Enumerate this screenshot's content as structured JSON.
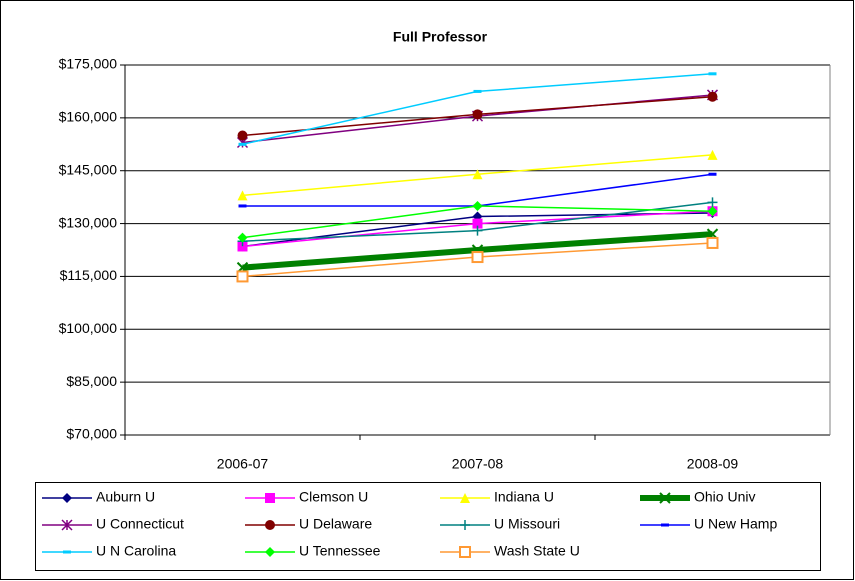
{
  "chart_data": {
    "type": "line",
    "title": "Full Professor",
    "categories": [
      "2006-07",
      "2007-08",
      "2008-09"
    ],
    "ylim": [
      70000,
      175000
    ],
    "yticks": [
      {
        "value": 70000,
        "label": "$70,000"
      },
      {
        "value": 85000,
        "label": "$85,000"
      },
      {
        "value": 100000,
        "label": "$100,000"
      },
      {
        "value": 115000,
        "label": "$115,000"
      },
      {
        "value": 130000,
        "label": "$130,000"
      },
      {
        "value": 145000,
        "label": "$145,000"
      },
      {
        "value": 160000,
        "label": "$160,000"
      },
      {
        "value": 175000,
        "label": "$175,000"
      }
    ],
    "grid": true,
    "legend": "bottom",
    "series": [
      {
        "name": "Auburn U",
        "color": "#000080",
        "marker": "diamond",
        "values": [
          123500,
          132000,
          133000
        ]
      },
      {
        "name": "Clemson U",
        "color": "#ff00ff",
        "marker": "square",
        "values": [
          123500,
          130000,
          133500
        ]
      },
      {
        "name": "Indiana U",
        "color": "#ffff00",
        "marker": "triangle",
        "values": [
          138000,
          144000,
          149500
        ]
      },
      {
        "name": "Ohio Univ",
        "color": "#008000",
        "marker": "x",
        "width": 6,
        "values": [
          117500,
          122500,
          127000
        ]
      },
      {
        "name": "U Connecticut",
        "color": "#800080",
        "marker": "star",
        "values": [
          153000,
          160500,
          166500
        ]
      },
      {
        "name": "U Delaware",
        "color": "#800000",
        "marker": "circle",
        "values": [
          155000,
          161000,
          166000
        ]
      },
      {
        "name": "U Missouri",
        "color": "#008080",
        "marker": "plus",
        "values": [
          125000,
          128000,
          136000
        ]
      },
      {
        "name": "U New Hamp",
        "color": "#0000ff",
        "marker": "dash",
        "values": [
          135000,
          135000,
          144000
        ]
      },
      {
        "name": "U N Carolina",
        "color": "#00ccff",
        "marker": "dash",
        "values": [
          152500,
          167500,
          172500
        ]
      },
      {
        "name": "U Tennessee",
        "color": "#00ff00",
        "marker": "diamond",
        "values": [
          126000,
          135000,
          133500
        ]
      },
      {
        "name": "Wash State U",
        "color": "#ff9933",
        "marker": "opensquare",
        "values": [
          115000,
          120500,
          124500
        ]
      }
    ]
  }
}
